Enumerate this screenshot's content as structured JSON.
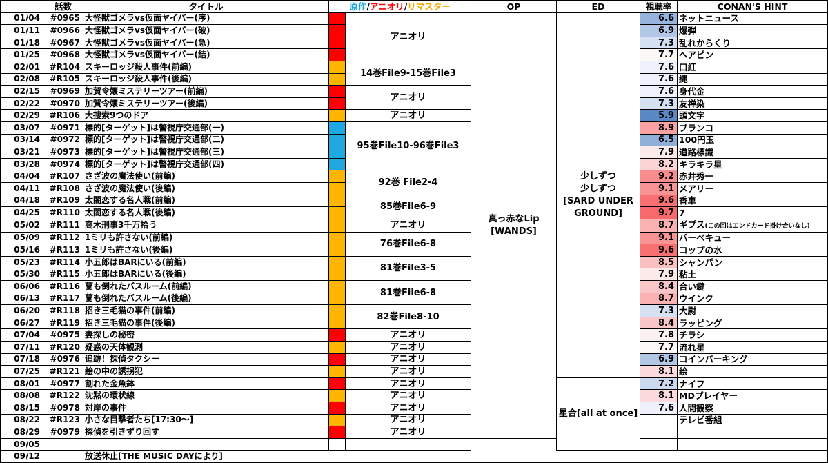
{
  "headers": {
    "date": "",
    "ep": "話数",
    "title": "タイトル",
    "src_original": "原作",
    "src_anime": "アニオリ",
    "src_remaster": "リマスター",
    "slash": "/",
    "op": "OP",
    "ed": "ED",
    "rating": "視聴率",
    "hint": "CONAN'S HINT"
  },
  "colors": {
    "original": "#1ea7e1",
    "anime_original": "#ff0000",
    "remaster": "#ffb400"
  },
  "rows": [
    {
      "date": "01/04",
      "ep": "#0965",
      "title": "大怪獣ゴメラvs仮面ヤイバー(序)",
      "src": "anime_original",
      "rating": "6.6",
      "hint": "ネットニュース"
    },
    {
      "date": "01/11",
      "ep": "#0966",
      "title": "大怪獣ゴメラvs仮面ヤイバー(破)",
      "src": "anime_original",
      "rating": "6.9",
      "hint": "爆弾"
    },
    {
      "date": "01/18",
      "ep": "#0967",
      "title": "大怪獣ゴメラvs仮面ヤイバー(急)",
      "src": "anime_original",
      "rating": "7.3",
      "hint": "乱れからくり"
    },
    {
      "date": "01/25",
      "ep": "#0968",
      "title": "大怪獣ゴメラvs仮面ヤイバー(結)",
      "src": "anime_original",
      "rating": "7.7",
      "hint": "ヘアピン"
    },
    {
      "date": "02/01",
      "ep": "#R104",
      "title": "スキーロッジ殺人事件(前編)",
      "src": "remaster",
      "rating": "7.6",
      "hint": "口紅"
    },
    {
      "date": "02/08",
      "ep": "#R105",
      "title": "スキーロッジ殺人事件(後編)",
      "src": "remaster",
      "rating": "7.6",
      "hint": "縄"
    },
    {
      "date": "02/15",
      "ep": "#0969",
      "title": "加賀令嬢ミステリーツアー(前編)",
      "src": "anime_original",
      "rating": "7.6",
      "hint": "身代金"
    },
    {
      "date": "02/22",
      "ep": "#0970",
      "title": "加賀令嬢ミステリーツアー(後編)",
      "src": "anime_original",
      "rating": "7.3",
      "hint": "友禅染"
    },
    {
      "date": "02/29",
      "ep": "#R106",
      "title": "大捜索9つのドア",
      "src": "remaster",
      "rating": "5.9",
      "hint": "頭文字"
    },
    {
      "date": "03/07",
      "ep": "#0971",
      "title": "標的[ターゲット]は警視庁交通部(一)",
      "src": "original",
      "rating": "8.9",
      "hint": "ブランコ"
    },
    {
      "date": "03/14",
      "ep": "#0972",
      "title": "標的[ターゲット]は警視庁交通部(二)",
      "src": "original",
      "rating": "6.5",
      "hint": "100円玉"
    },
    {
      "date": "03/21",
      "ep": "#0973",
      "title": "標的[ターゲット]は警視庁交通部(三)",
      "src": "original",
      "rating": "7.9",
      "hint": "道路標識"
    },
    {
      "date": "03/28",
      "ep": "#0974",
      "title": "標的[ターゲット]は警視庁交通部(四)",
      "src": "original",
      "rating": "8.2",
      "hint": "キラキラ星"
    },
    {
      "date": "04/04",
      "ep": "#R107",
      "title": "さざ波の魔法使い(前編)",
      "src": "remaster",
      "rating": "9.2",
      "hint": "赤井秀一"
    },
    {
      "date": "04/11",
      "ep": "#R108",
      "title": "さざ波の魔法使い(後編)",
      "src": "remaster",
      "rating": "9.1",
      "hint": "メアリー"
    },
    {
      "date": "04/18",
      "ep": "#R109",
      "title": "太閤恋する名人戦(前編)",
      "src": "remaster",
      "rating": "9.6",
      "hint": "香車"
    },
    {
      "date": "04/25",
      "ep": "#R110",
      "title": "太閤恋する名人戦(後編)",
      "src": "remaster",
      "rating": "9.7",
      "hint": "7"
    },
    {
      "date": "05/02",
      "ep": "#R111",
      "title": "高木刑事3千万拾う",
      "src": "remaster",
      "rating": "8.7",
      "hint": "ギプス",
      "note": "(この回はエンドカード掛け合いなし)"
    },
    {
      "date": "05/09",
      "ep": "#R112",
      "title": "1ミリも許さない(前編)",
      "src": "remaster",
      "rating": "9.1",
      "hint": "バーベキュー"
    },
    {
      "date": "05/16",
      "ep": "#R113",
      "title": "1ミリも許さない(後編)",
      "src": "remaster",
      "rating": "9.6",
      "hint": "コップの水"
    },
    {
      "date": "05/23",
      "ep": "#R114",
      "title": "小五郎はBARにいる(前編)",
      "src": "remaster",
      "rating": "8.5",
      "hint": "シャンパン"
    },
    {
      "date": "05/30",
      "ep": "#R115",
      "title": "小五郎はBARにいる(後編)",
      "src": "remaster",
      "rating": "7.9",
      "hint": "粘土"
    },
    {
      "date": "06/06",
      "ep": "#R116",
      "title": "蘭も倒れたバスルーム(前編)",
      "src": "remaster",
      "rating": "8.4",
      "hint": "合い鍵"
    },
    {
      "date": "06/13",
      "ep": "#R117",
      "title": "蘭も倒れたバスルーム(後編)",
      "src": "remaster",
      "rating": "8.7",
      "hint": "ウインク"
    },
    {
      "date": "06/20",
      "ep": "#R118",
      "title": "招き三毛猫の事件(前編)",
      "src": "remaster",
      "rating": "7.3",
      "hint": "大尉"
    },
    {
      "date": "06/27",
      "ep": "#R119",
      "title": "招き三毛猫の事件(後編)",
      "src": "remaster",
      "rating": "8.4",
      "hint": "ラッピング"
    },
    {
      "date": "07/04",
      "ep": "#0975",
      "title": "妻探しの秘密",
      "src": "anime_original",
      "rating": "7.8",
      "hint": "チラシ"
    },
    {
      "date": "07/11",
      "ep": "#R120",
      "title": "疑惑の天体観測",
      "src": "remaster",
      "rating": "7.7",
      "hint": "流れ星"
    },
    {
      "date": "07/18",
      "ep": "#0976",
      "title": "追跡！探偵タクシー",
      "src": "anime_original",
      "rating": "6.9",
      "hint": "コインパーキング"
    },
    {
      "date": "07/25",
      "ep": "#R121",
      "title": "絵の中の誘拐犯",
      "src": "remaster",
      "rating": "8.1",
      "hint": "絵"
    },
    {
      "date": "08/01",
      "ep": "#0977",
      "title": "割れた金魚鉢",
      "src": "anime_original",
      "rating": "7.2",
      "hint": "ナイフ"
    },
    {
      "date": "08/08",
      "ep": "#R122",
      "title": "沈黙の環状線",
      "src": "remaster",
      "rating": "8.1",
      "hint": "MDプレイヤー"
    },
    {
      "date": "08/15",
      "ep": "#0978",
      "title": "対岸の事件",
      "src": "anime_original",
      "rating": "7.6",
      "hint": "人間観察"
    },
    {
      "date": "08/22",
      "ep": "#R123",
      "title": "小さな目撃者たち[17:30〜]",
      "src": "remaster",
      "rating": "",
      "hint": "テレビ番組"
    },
    {
      "date": "08/29",
      "ep": "#0979",
      "title": "探偵を引きずり回す",
      "src": "anime_original",
      "rating": "",
      "hint": ""
    },
    {
      "date": "09/05",
      "ep": "",
      "title": "",
      "src": "",
      "rating": "",
      "hint": ""
    },
    {
      "date": "09/12",
      "ep": "",
      "title": "放送休止[THE MUSIC DAYにより]",
      "src": "",
      "rating": "",
      "hint": ""
    }
  ],
  "spans": [
    {
      "start": 0,
      "len": 4,
      "text": "アニオリ"
    },
    {
      "start": 4,
      "len": 2,
      "text": "14巻File9-15巻File3"
    },
    {
      "start": 6,
      "len": 2,
      "text": "アニオリ"
    },
    {
      "start": 8,
      "len": 1,
      "text": "アニオリ"
    },
    {
      "start": 9,
      "len": 4,
      "text": "95巻File10-96巻File3"
    },
    {
      "start": 13,
      "len": 2,
      "text": "92巻 File2-4"
    },
    {
      "start": 15,
      "len": 2,
      "text": "85巻File6-9"
    },
    {
      "start": 17,
      "len": 1,
      "text": "アニオリ"
    },
    {
      "start": 18,
      "len": 2,
      "text": "76巻File6-8"
    },
    {
      "start": 20,
      "len": 2,
      "text": "81巻File3-5"
    },
    {
      "start": 22,
      "len": 2,
      "text": "81巻File6-8"
    },
    {
      "start": 24,
      "len": 2,
      "text": "82巻File8-10"
    },
    {
      "start": 26,
      "len": 1,
      "text": "アニオリ"
    },
    {
      "start": 27,
      "len": 1,
      "text": "アニオリ"
    },
    {
      "start": 28,
      "len": 1,
      "text": "アニオリ"
    },
    {
      "start": 29,
      "len": 1,
      "text": "アニオリ"
    },
    {
      "start": 30,
      "len": 1,
      "text": "アニオリ"
    },
    {
      "start": 31,
      "len": 1,
      "text": "アニオリ"
    },
    {
      "start": 32,
      "len": 1,
      "text": "アニオリ"
    },
    {
      "start": 33,
      "len": 1,
      "text": "アニオリ"
    },
    {
      "start": 34,
      "len": 1,
      "text": "アニオリ"
    },
    {
      "start": 35,
      "len": 1,
      "text": ""
    }
  ],
  "op": {
    "text": "真っ赤なLip\n[WANDS]"
  },
  "ed": [
    {
      "start": 0,
      "len": 30,
      "text": "少しずつ\n少しずつ\n[SARD UNDER\nGROUND]"
    },
    {
      "start": 30,
      "len": 6,
      "text": "星合[all at once]"
    }
  ]
}
